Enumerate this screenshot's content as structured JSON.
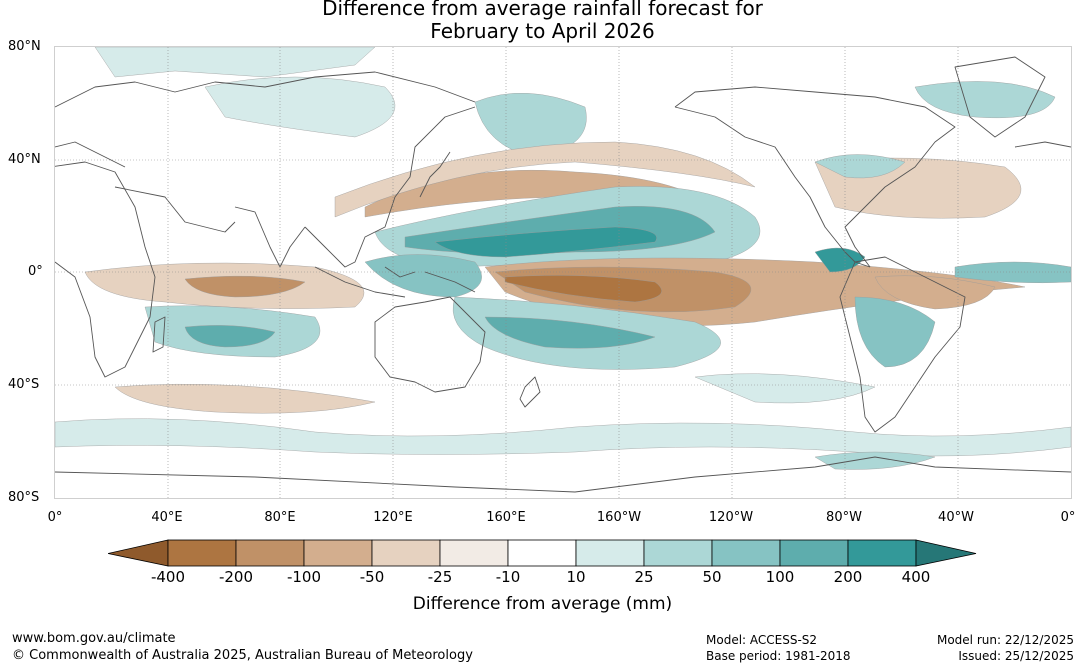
{
  "title": {
    "line1": "Difference from average rainfall forecast for",
    "line2": "February to April 2026"
  },
  "map": {
    "lat_labels": [
      "80°N",
      "40°N",
      "0°",
      "40°S",
      "80°S"
    ],
    "lon_labels": [
      "0°",
      "40°E",
      "80°E",
      "120°E",
      "160°E",
      "160°W",
      "120°W",
      "80°W",
      "40°W",
      "0°"
    ]
  },
  "legend": {
    "title": "Difference from average (mm)",
    "ticks": [
      "-400",
      "-200",
      "-100",
      "-50",
      "-25",
      "-10",
      "10",
      "25",
      "50",
      "100",
      "200",
      "400"
    ],
    "colors": [
      "#8f5a2c",
      "#ad7541",
      "#c09167",
      "#d3ae8e",
      "#e6d2c0",
      "#f2ebe5",
      "#ffffff",
      "#d6ebea",
      "#acd7d6",
      "#86c3c3",
      "#5eadad",
      "#339999",
      "#267777"
    ]
  },
  "footer": {
    "url": "www.bom.gov.au/climate",
    "copyright": "© Commonwealth of Australia 2025, Australian Bureau of Meteorology",
    "model": "Model: ACCESS-S2",
    "base_period": "Base period: 1981-2018",
    "model_run": "Model run: 22/12/2025",
    "issued": "Issued: 25/12/2025"
  }
}
